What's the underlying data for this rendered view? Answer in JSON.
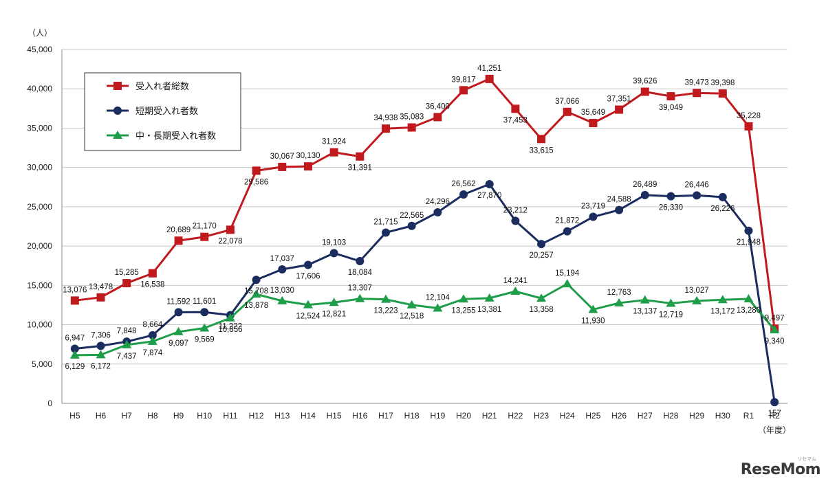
{
  "chart_data": {
    "type": "line",
    "categories": [
      "H5",
      "H6",
      "H7",
      "H8",
      "H9",
      "H10",
      "H11",
      "H12",
      "H13",
      "H14",
      "H15",
      "H16",
      "H17",
      "H18",
      "H19",
      "H20",
      "H21",
      "H22",
      "H23",
      "H24",
      "H25",
      "H26",
      "H27",
      "H28",
      "H29",
      "H30",
      "R1",
      "R2"
    ],
    "series": [
      {
        "name": "受入れ者総数",
        "color": "#c0191e",
        "marker": "square",
        "values": [
          13076,
          13478,
          15285,
          16538,
          20689,
          21170,
          22078,
          29586,
          30067,
          30130,
          31924,
          31391,
          34938,
          35083,
          36400,
          39817,
          41251,
          37453,
          33615,
          37066,
          35649,
          37351,
          39626,
          39049,
          39473,
          39398,
          35228,
          9497
        ]
      },
      {
        "name": "短期受入れ者数",
        "color": "#1b2d5e",
        "marker": "circle",
        "values": [
          6947,
          7306,
          7848,
          8664,
          11592,
          11601,
          11222,
          15708,
          17037,
          17606,
          19103,
          18084,
          21715,
          22565,
          24296,
          26562,
          27870,
          23212,
          20257,
          21872,
          23719,
          24588,
          26489,
          26330,
          26446,
          26226,
          21948,
          157
        ]
      },
      {
        "name": "中・長期受入れ者数",
        "color": "#1f9e4a",
        "marker": "triangle",
        "values": [
          6129,
          6172,
          7437,
          7874,
          9097,
          9569,
          10856,
          13878,
          13030,
          12524,
          12821,
          13307,
          13223,
          12518,
          12104,
          13255,
          13381,
          14241,
          13358,
          15194,
          11930,
          12763,
          13137,
          12719,
          13027,
          13172,
          13280,
          9340
        ]
      }
    ],
    "ylim": [
      0,
      45000
    ],
    "yticks": [
      0,
      5000,
      10000,
      15000,
      20000,
      25000,
      30000,
      35000,
      40000,
      45000
    ],
    "ylabel": "（人）",
    "xlabel": "（年度）",
    "grid": true,
    "legend_position": "top-left"
  },
  "watermark": "ReseMom",
  "watermark_sub": "リセマム"
}
